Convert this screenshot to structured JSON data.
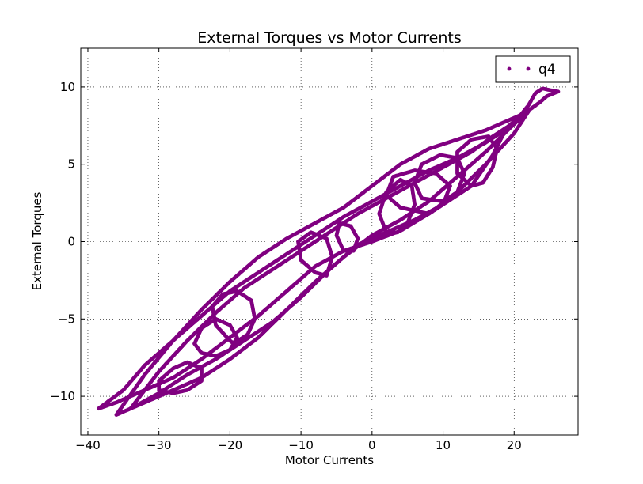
{
  "chart_data": {
    "type": "scatter",
    "title": "External Torques vs Motor Currents",
    "xlabel": "Motor Currents",
    "ylabel": "External Torques",
    "xlim": [
      -41,
      29
    ],
    "ylim": [
      -12.5,
      12.5
    ],
    "xticks": [
      -40,
      -30,
      -20,
      -10,
      0,
      10,
      20
    ],
    "yticks": [
      -10,
      -5,
      0,
      5,
      10
    ],
    "grid": true,
    "legend_position": "top-right",
    "series": [
      {
        "name": "q4",
        "color": "#800080",
        "marker": "dot",
        "loops": [
          [
            [
              -38.5,
              -10.8
            ],
            [
              -36,
              -10.4
            ],
            [
              -32,
              -9.6
            ],
            [
              -28,
              -8.8
            ],
            [
              -24,
              -7.6
            ],
            [
              -20,
              -6.2
            ],
            [
              -16,
              -4.8
            ],
            [
              -12,
              -3.2
            ],
            [
              -8,
              -1.6
            ],
            [
              -4,
              -0.6
            ],
            [
              0,
              0
            ],
            [
              4,
              0.7
            ],
            [
              8,
              1.8
            ],
            [
              12,
              3.2
            ],
            [
              16,
              5.0
            ],
            [
              20,
              7.0
            ],
            [
              22,
              8.4
            ],
            [
              20,
              7.6
            ],
            [
              16,
              6.4
            ],
            [
              12,
              5.4
            ],
            [
              8,
              4.6
            ],
            [
              4,
              3.6
            ],
            [
              0,
              2.6
            ],
            [
              -4,
              1.6
            ],
            [
              -8,
              0.4
            ],
            [
              -12,
              -0.8
            ],
            [
              -16,
              -2.0
            ],
            [
              -20,
              -3.2
            ],
            [
              -24,
              -4.8
            ],
            [
              -28,
              -6.4
            ],
            [
              -32,
              -8.0
            ],
            [
              -35,
              -9.6
            ],
            [
              -38.5,
              -10.8
            ]
          ],
          [
            [
              -36,
              -11.2
            ],
            [
              -32,
              -10.4
            ],
            [
              -28,
              -9.6
            ],
            [
              -24,
              -8.8
            ],
            [
              -20,
              -7.6
            ],
            [
              -16,
              -6.2
            ],
            [
              -12,
              -4.4
            ],
            [
              -8,
              -2.6
            ],
            [
              -4,
              -1.0
            ],
            [
              0,
              0.4
            ],
            [
              4,
              1.4
            ],
            [
              8,
              2.6
            ],
            [
              12,
              4.2
            ],
            [
              16,
              5.8
            ],
            [
              20,
              7.6
            ],
            [
              21,
              8.2
            ],
            [
              19,
              7.8
            ],
            [
              16,
              7.2
            ],
            [
              12,
              6.6
            ],
            [
              8,
              6.0
            ],
            [
              4,
              5.0
            ],
            [
              0,
              3.6
            ],
            [
              -4,
              2.2
            ],
            [
              -8,
              1.2
            ],
            [
              -12,
              0.2
            ],
            [
              -16,
              -1.0
            ],
            [
              -20,
              -2.6
            ],
            [
              -24,
              -4.4
            ],
            [
              -28,
              -6.4
            ],
            [
              -32,
              -8.6
            ],
            [
              -36,
              -11.2
            ]
          ],
          [
            [
              -34,
              -10.8
            ],
            [
              -30,
              -9.8
            ],
            [
              -26,
              -8.6
            ],
            [
              -22,
              -7.6
            ],
            [
              -18,
              -6.4
            ],
            [
              -14,
              -5.2
            ],
            [
              -10,
              -3.6
            ],
            [
              -6,
              -1.8
            ],
            [
              -2,
              -0.2
            ],
            [
              2,
              0.6
            ],
            [
              6,
              1.4
            ],
            [
              10,
              2.4
            ],
            [
              14,
              3.6
            ],
            [
              17,
              5.6
            ],
            [
              19,
              7.4
            ],
            [
              17,
              6.8
            ],
            [
              14,
              5.8
            ],
            [
              10,
              4.8
            ],
            [
              6,
              3.8
            ],
            [
              2,
              2.8
            ],
            [
              -2,
              1.8
            ],
            [
              -6,
              0.6
            ],
            [
              -10,
              -0.6
            ],
            [
              -14,
              -1.8
            ],
            [
              -18,
              -3.0
            ],
            [
              -22,
              -4.6
            ],
            [
              -26,
              -6.4
            ],
            [
              -30,
              -8.4
            ],
            [
              -34,
              -10.8
            ]
          ],
          [
            [
              -20,
              -6.4
            ],
            [
              -22,
              -5.4
            ],
            [
              -22.5,
              -4.2
            ],
            [
              -21,
              -3.4
            ],
            [
              -19,
              -3.2
            ],
            [
              -17,
              -3.8
            ],
            [
              -16.5,
              -5.0
            ],
            [
              -17.5,
              -6.0
            ],
            [
              -19.5,
              -6.6
            ],
            [
              -20,
              -6.4
            ]
          ],
          [
            [
              -25,
              -6.6
            ],
            [
              -24,
              -5.6
            ],
            [
              -22,
              -5.0
            ],
            [
              -20,
              -5.4
            ],
            [
              -19,
              -6.2
            ],
            [
              -20,
              -7.0
            ],
            [
              -22,
              -7.4
            ],
            [
              -24,
              -7.2
            ],
            [
              -25,
              -6.6
            ]
          ],
          [
            [
              -30,
              -9.0
            ],
            [
              -28,
              -8.2
            ],
            [
              -26,
              -7.8
            ],
            [
              -24,
              -8.2
            ],
            [
              -24,
              -9.0
            ],
            [
              -26,
              -9.6
            ],
            [
              -28,
              -9.8
            ],
            [
              -30,
              -9.6
            ],
            [
              -30,
              -9.0
            ]
          ],
          [
            [
              2,
              0.6
            ],
            [
              1,
              1.8
            ],
            [
              2,
              3.2
            ],
            [
              4,
              4.0
            ],
            [
              5.6,
              3.6
            ],
            [
              6,
              2.4
            ],
            [
              5,
              1.2
            ],
            [
              3.6,
              0.6
            ],
            [
              2,
              0.6
            ]
          ],
          [
            [
              10,
              2.6
            ],
            [
              7,
              2.8
            ],
            [
              6,
              3.8
            ],
            [
              7,
              5.0
            ],
            [
              9.6,
              5.6
            ],
            [
              12,
              5.4
            ],
            [
              13,
              4.4
            ],
            [
              12,
              3.2
            ],
            [
              10,
              2.6
            ]
          ],
          [
            [
              14,
              3.6
            ],
            [
              12,
              4.4
            ],
            [
              12,
              5.8
            ],
            [
              14,
              6.6
            ],
            [
              16.4,
              6.8
            ],
            [
              17.6,
              6.0
            ],
            [
              17,
              4.8
            ],
            [
              15.6,
              3.8
            ],
            [
              14,
              3.6
            ]
          ],
          [
            [
              8,
              1.8
            ],
            [
              4,
              2.2
            ],
            [
              2,
              3.0
            ],
            [
              3,
              4.2
            ],
            [
              6,
              4.6
            ],
            [
              9,
              4.4
            ],
            [
              11,
              3.6
            ],
            [
              10,
              2.4
            ],
            [
              8,
              1.8
            ]
          ],
          [
            [
              -8,
              -2.0
            ],
            [
              -10,
              -1.2
            ],
            [
              -10.4,
              0.0
            ],
            [
              -8.6,
              0.6
            ],
            [
              -6.4,
              0.2
            ],
            [
              -5.6,
              -1.0
            ],
            [
              -6.4,
              -2.2
            ],
            [
              -8,
              -2.0
            ]
          ],
          [
            [
              -4,
              -0.6
            ],
            [
              -5,
              0.4
            ],
            [
              -4.6,
              1.2
            ],
            [
              -3.0,
              1.0
            ],
            [
              -2.0,
              0.2
            ],
            [
              -2.6,
              -0.6
            ],
            [
              -4,
              -0.6
            ]
          ],
          [
            [
              18,
              7.0
            ],
            [
              20.6,
              8.0
            ],
            [
              22,
              8.8
            ],
            [
              23,
              9.6
            ],
            [
              24,
              9.9
            ],
            [
              25,
              9.8
            ],
            [
              26.2,
              9.7
            ],
            [
              24.6,
              9.4
            ],
            [
              23.6,
              9.0
            ],
            [
              22.4,
              8.6
            ],
            [
              21,
              8.2
            ],
            [
              19.6,
              7.6
            ],
            [
              18,
              7.0
            ]
          ]
        ]
      }
    ]
  }
}
